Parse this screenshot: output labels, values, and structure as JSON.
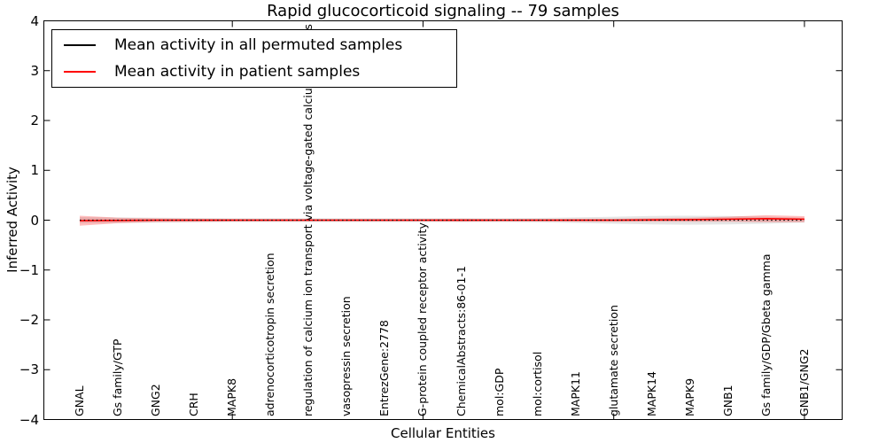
{
  "figure": {
    "background": "#ffffff",
    "axis_color": "#000000"
  },
  "legend": {
    "position": "upper left",
    "entries": [
      {
        "label": "Mean activity in all permuted samples",
        "color": "#000000"
      },
      {
        "label": "Mean activity in patient samples",
        "color": "#ff0000"
      }
    ]
  },
  "chart_data": {
    "type": "line",
    "title": "Rapid glucocorticoid signaling -- 79 samples",
    "xlabel": "Cellular Entities",
    "ylabel": "Inferred Activity",
    "ylim": [
      -4,
      4
    ],
    "yticks": [
      4,
      3,
      2,
      1,
      0,
      -1,
      -2,
      -3,
      -4
    ],
    "x_major_tick_indices": [
      4,
      9,
      14,
      19
    ],
    "grid": false,
    "legend_position": "upper left",
    "categories": [
      "GNAL",
      "Gs family/GTP",
      "GNG2",
      "CRH",
      "MAPK8",
      "adrenocorticotropin secretion",
      "regulation of calcium ion transport via voltage-gated calcium channels",
      "vasopressin secretion",
      "EntrezGene:2778",
      "G-protein coupled receptor activity",
      "ChemicalAbstracts:86-01-1",
      "mol:GDP",
      "mol:cortisol",
      "MAPK11",
      "glutamate secretion",
      "MAPK14",
      "MAPK9",
      "GNB1",
      "Gs family/GDP/Gbeta gamma",
      "GNB1/GNG2"
    ],
    "series": [
      {
        "name": "Mean activity in all permuted samples",
        "color": "#000000",
        "linestyle": "dotted",
        "values": [
          0,
          0,
          0,
          0,
          0,
          0,
          0,
          0,
          0,
          0,
          0,
          0,
          0,
          0,
          0,
          0,
          0,
          0,
          0,
          0
        ],
        "band_halfwidth": [
          0.06,
          0.055,
          0.05,
          0.045,
          0.04,
          0.04,
          0.04,
          0.04,
          0.04,
          0.04,
          0.04,
          0.04,
          0.045,
          0.055,
          0.07,
          0.085,
          0.09,
          0.085,
          0.07,
          0.05
        ],
        "band_color": "rgba(0,0,0,0.10)"
      },
      {
        "name": "Mean activity in patient samples",
        "color": "#ff0000",
        "linestyle": "solid",
        "values": [
          -0.01,
          -0.005,
          0,
          0,
          0,
          0,
          0,
          0,
          0,
          0,
          0,
          0,
          0,
          0,
          0,
          0.005,
          0.01,
          0.02,
          0.03,
          0.02
        ],
        "band_halfwidth": [
          0.1,
          0.055,
          0.035,
          0.03,
          0.025,
          0.022,
          0.022,
          0.022,
          0.022,
          0.022,
          0.028,
          0.022,
          0.022,
          0.028,
          0.03,
          0.035,
          0.04,
          0.05,
          0.07,
          0.06
        ],
        "band_color": "rgba(255,0,0,0.25)"
      }
    ]
  }
}
